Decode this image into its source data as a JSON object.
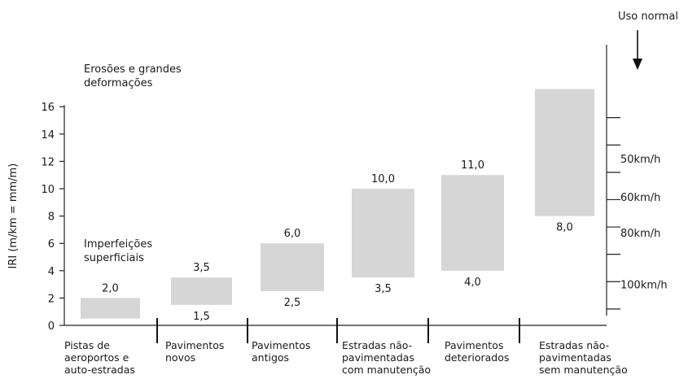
{
  "chart_data": {
    "type": "bar",
    "subtype": "floating-range",
    "ylabel": "IRI (m/km = mm/m)",
    "ylim": [
      0,
      16
    ],
    "yticks": [
      "0",
      "2",
      "4",
      "6",
      "8",
      "10",
      "12",
      "14",
      "16"
    ],
    "grid": false,
    "categories": [
      [
        "Pistas de",
        "aeroportos e",
        "auto-estradas"
      ],
      [
        "Pavimentos",
        "novos"
      ],
      [
        "Pavimentos",
        "antigos"
      ],
      [
        "Estradas não-",
        "pavimentadas",
        "com manutenção"
      ],
      [
        "Pavimentos",
        "deteriorados"
      ],
      [
        "Estradas não-",
        "pavimentadas",
        "sem manutenção"
      ]
    ],
    "ranges": [
      {
        "low": 0.5,
        "high": 2.0,
        "low_label": "",
        "high_label": "2,0"
      },
      {
        "low": 1.5,
        "high": 3.5,
        "low_label": "1,5",
        "high_label": "3,5"
      },
      {
        "low": 2.5,
        "high": 6.0,
        "low_label": "2,5",
        "high_label": "6,0"
      },
      {
        "low": 3.5,
        "high": 10.0,
        "low_label": "3,5",
        "high_label": "10,0"
      },
      {
        "low": 4.0,
        "high": 11.0,
        "low_label": "4,0",
        "high_label": "11,0"
      },
      {
        "low": 8.0,
        "high": 17.3,
        "low_label": "8,0",
        "high_label": ""
      }
    ],
    "bar_color": "#d6d6d6",
    "annotations": [
      {
        "lines": [
          "Erosões e grandes",
          "deformações"
        ],
        "y": 15.6
      },
      {
        "lines": [
          "Imperfeições",
          "superficiais"
        ],
        "y": 4.5
      }
    ],
    "right_axis": {
      "title": "Uso normal",
      "arrow": "down",
      "ticks": [
        1.2,
        3.2,
        5.2,
        7.2,
        9.2,
        11.2,
        13.2,
        15.2
      ],
      "labels": [
        {
          "text": "50km/h",
          "y": 12.2
        },
        {
          "text": "60km/h",
          "y": 9.4
        },
        {
          "text": "80km/h",
          "y": 6.8
        },
        {
          "text": "100km/h",
          "y": 3.0
        }
      ]
    }
  }
}
